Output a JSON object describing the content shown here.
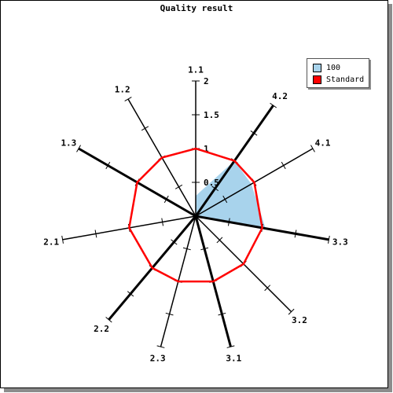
{
  "chart_data": {
    "type": "radar",
    "title": "Quality result",
    "axes": [
      "1.1",
      "4.2",
      "4.1",
      "3.3",
      "3.2",
      "3.1",
      "2.3",
      "2.2",
      "2.1",
      "1.3",
      "1.2"
    ],
    "axis_angles_deg": [
      0,
      35,
      60,
      100,
      135,
      165,
      195,
      220,
      260,
      300,
      330
    ],
    "radial_ticks": [
      "0.5",
      "1",
      "1.5",
      "2"
    ],
    "rmax": 2,
    "series": [
      {
        "name": "100",
        "color": "#a8d3ec",
        "fill": true,
        "values": [
          0.3,
          1.0,
          0.95,
          1.05,
          0,
          0,
          0,
          0,
          0,
          0,
          0
        ]
      },
      {
        "name": "Standard",
        "color": "#ff0000",
        "fill": false,
        "values": [
          1,
          1,
          1,
          1,
          1,
          1,
          1,
          1,
          1,
          1,
          1
        ]
      }
    ],
    "legend": {
      "position": "top-right"
    }
  }
}
